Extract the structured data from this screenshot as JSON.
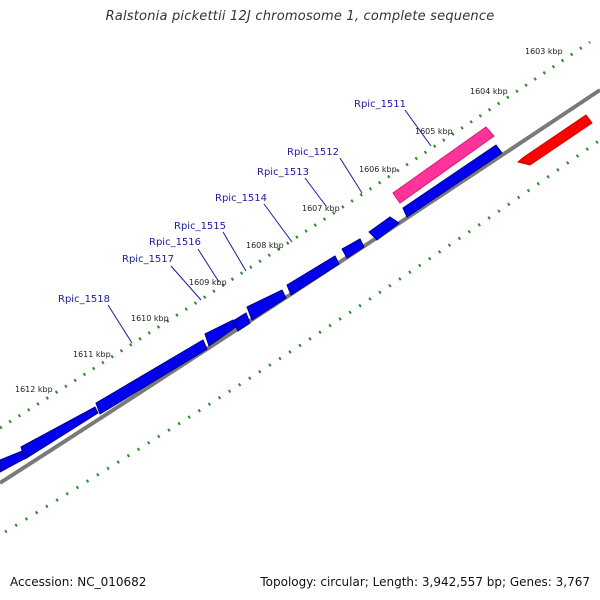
{
  "title": "Ralstonia pickettii 12J chromosome 1, complete sequence",
  "footer": {
    "accession": "Accession: NC_010682",
    "summary": "Topology: circular; Length: 3,942,557 bp; Genes: 3,767"
  },
  "colors": {
    "forward_gene": "#0000ee",
    "highlight_gene": "#ff3399",
    "reverse_gene": "#ff0000",
    "backbone": "#808080",
    "ticks": "#2e8b2e",
    "gene_label": "#1a1aa0"
  },
  "scale_labels": [
    "1603 kbp",
    "1604 kbp",
    "1605 kbp",
    "1606 kbp",
    "1607 kbp",
    "1608 kbp",
    "1609 kbp",
    "1610 kbp",
    "1611 kbp",
    "1612 kbp"
  ],
  "gene_labels": [
    "Rpic_1511",
    "Rpic_1512",
    "Rpic_1513",
    "Rpic_1514",
    "Rpic_1515",
    "Rpic_1516",
    "Rpic_1517",
    "Rpic_1518"
  ]
}
